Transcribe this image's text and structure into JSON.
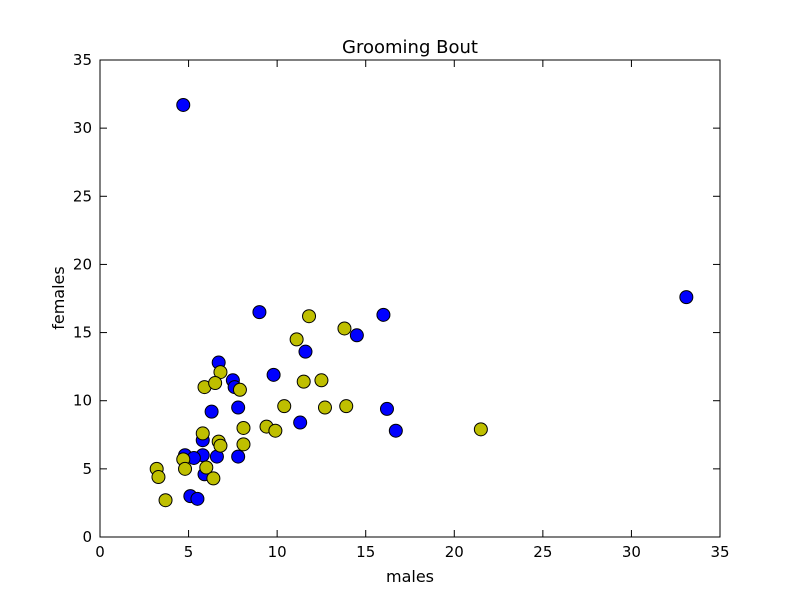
{
  "chart_data": {
    "type": "scatter",
    "title": "Grooming Bout",
    "xlabel": "males",
    "ylabel": "females",
    "xlim": [
      0,
      35
    ],
    "ylim": [
      0,
      35
    ],
    "xticks": [
      "0",
      "5",
      "10",
      "15",
      "20",
      "25",
      "30",
      "35"
    ],
    "yticks": [
      "0",
      "5",
      "10",
      "15",
      "20",
      "25",
      "30",
      "35"
    ],
    "grid": false,
    "legend": "none",
    "series": [
      {
        "color": "#0000ff",
        "points": [
          [
            4.7,
            31.7
          ],
          [
            33.1,
            17.6
          ],
          [
            9.0,
            16.5
          ],
          [
            16.0,
            16.3
          ],
          [
            14.5,
            14.8
          ],
          [
            11.6,
            13.6
          ],
          [
            6.7,
            12.8
          ],
          [
            9.8,
            11.9
          ],
          [
            7.5,
            11.5
          ],
          [
            7.6,
            11.0
          ],
          [
            7.8,
            9.5
          ],
          [
            6.3,
            9.2
          ],
          [
            16.2,
            9.4
          ],
          [
            11.3,
            8.4
          ],
          [
            16.7,
            7.8
          ],
          [
            5.8,
            7.1
          ],
          [
            5.8,
            6.0
          ],
          [
            6.6,
            5.9
          ],
          [
            7.8,
            5.9
          ],
          [
            4.8,
            6.0
          ],
          [
            5.3,
            5.8
          ],
          [
            5.9,
            4.6
          ],
          [
            5.1,
            3.0
          ],
          [
            5.5,
            2.8
          ]
        ]
      },
      {
        "color": "#bfbf00",
        "points": [
          [
            11.8,
            16.2
          ],
          [
            13.8,
            15.3
          ],
          [
            11.1,
            14.5
          ],
          [
            6.8,
            12.1
          ],
          [
            5.9,
            11.0
          ],
          [
            6.5,
            11.3
          ],
          [
            7.9,
            10.8
          ],
          [
            11.5,
            11.4
          ],
          [
            12.5,
            11.5
          ],
          [
            10.4,
            9.6
          ],
          [
            12.7,
            9.5
          ],
          [
            13.9,
            9.6
          ],
          [
            9.4,
            8.1
          ],
          [
            8.1,
            8.0
          ],
          [
            9.9,
            7.8
          ],
          [
            5.8,
            7.6
          ],
          [
            6.7,
            7.0
          ],
          [
            6.8,
            6.7
          ],
          [
            8.1,
            6.8
          ],
          [
            21.5,
            7.9
          ],
          [
            4.7,
            5.7
          ],
          [
            6.0,
            5.1
          ],
          [
            4.8,
            5.0
          ],
          [
            3.2,
            5.0
          ],
          [
            3.3,
            4.4
          ],
          [
            6.4,
            4.3
          ],
          [
            3.7,
            2.7
          ]
        ]
      }
    ]
  }
}
